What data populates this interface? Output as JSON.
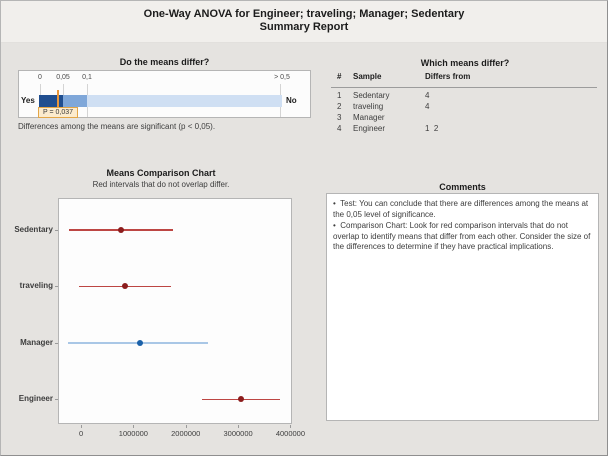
{
  "header": {
    "title_line1": "One-Way ANOVA for Engineer; traveling; Manager; Sedentary",
    "title_line2": "Summary Report"
  },
  "gauge": {
    "title": "Do the means differ?",
    "ticks": [
      "0",
      "0,05",
      "0,1",
      "> 0,5"
    ],
    "yes_label": "Yes",
    "no_label": "No",
    "p_label": "P = 0,037",
    "p_value": 0.037,
    "note": "Differences among the means are significant (p < 0,05).",
    "colors": {
      "significant": "#204e8f",
      "marginal": "#7fa7d9",
      "not_significant": "#cfdff3",
      "marker": "#ea9639"
    }
  },
  "which_differ": {
    "title": "Which means differ?",
    "columns": [
      "#",
      "Sample",
      "Differs from"
    ],
    "rows": [
      {
        "num": "1",
        "sample": "Sedentary",
        "differs": "4"
      },
      {
        "num": "2",
        "sample": "traveling",
        "differs": "4"
      },
      {
        "num": "3",
        "sample": "Manager",
        "differs": ""
      },
      {
        "num": "4",
        "sample": "Engineer",
        "differs": "1  2"
      }
    ]
  },
  "comments": {
    "title": "Comments",
    "bullet_glyph": "•",
    "items": [
      "Test: You can conclude that there are differences among the means at the 0,05 level of significance.",
      "Comparison Chart: Look for red comparison intervals that do not overlap to identify means that differ from each other. Consider the size of the differences to determine if they have practical implications."
    ]
  },
  "chart_data": {
    "type": "interval",
    "title": "Means Comparison Chart",
    "subtitle": "Red intervals that do not overlap differ.",
    "categories": [
      "Sedentary",
      "traveling",
      "Manager",
      "Engineer"
    ],
    "series": [
      {
        "name": "Sedentary",
        "mean": 760000,
        "low": -230000,
        "high": 1750000,
        "line_color": "#bd4643",
        "dot_color": "#8c1d1d"
      },
      {
        "name": "traveling",
        "mean": 840000,
        "low": -40000,
        "high": 1720000,
        "line_color": "#bd4643",
        "dot_color": "#8c1d1d"
      },
      {
        "name": "Manager",
        "mean": 1120000,
        "low": -250000,
        "high": 2420000,
        "line_color": "#a9c7e6",
        "dot_color": "#1b61a9"
      },
      {
        "name": "Engineer",
        "mean": 3050000,
        "low": 2320000,
        "high": 3810000,
        "line_color": "#bd4643",
        "dot_color": "#8c1d1d"
      }
    ],
    "xticks": [
      0,
      1000000,
      2000000,
      3000000,
      4000000
    ],
    "xtick_labels": [
      "0",
      "1000000",
      "2000000",
      "3000000",
      "4000000"
    ],
    "xlim": [
      -440000,
      4030000
    ],
    "grid": false,
    "legend": false
  }
}
